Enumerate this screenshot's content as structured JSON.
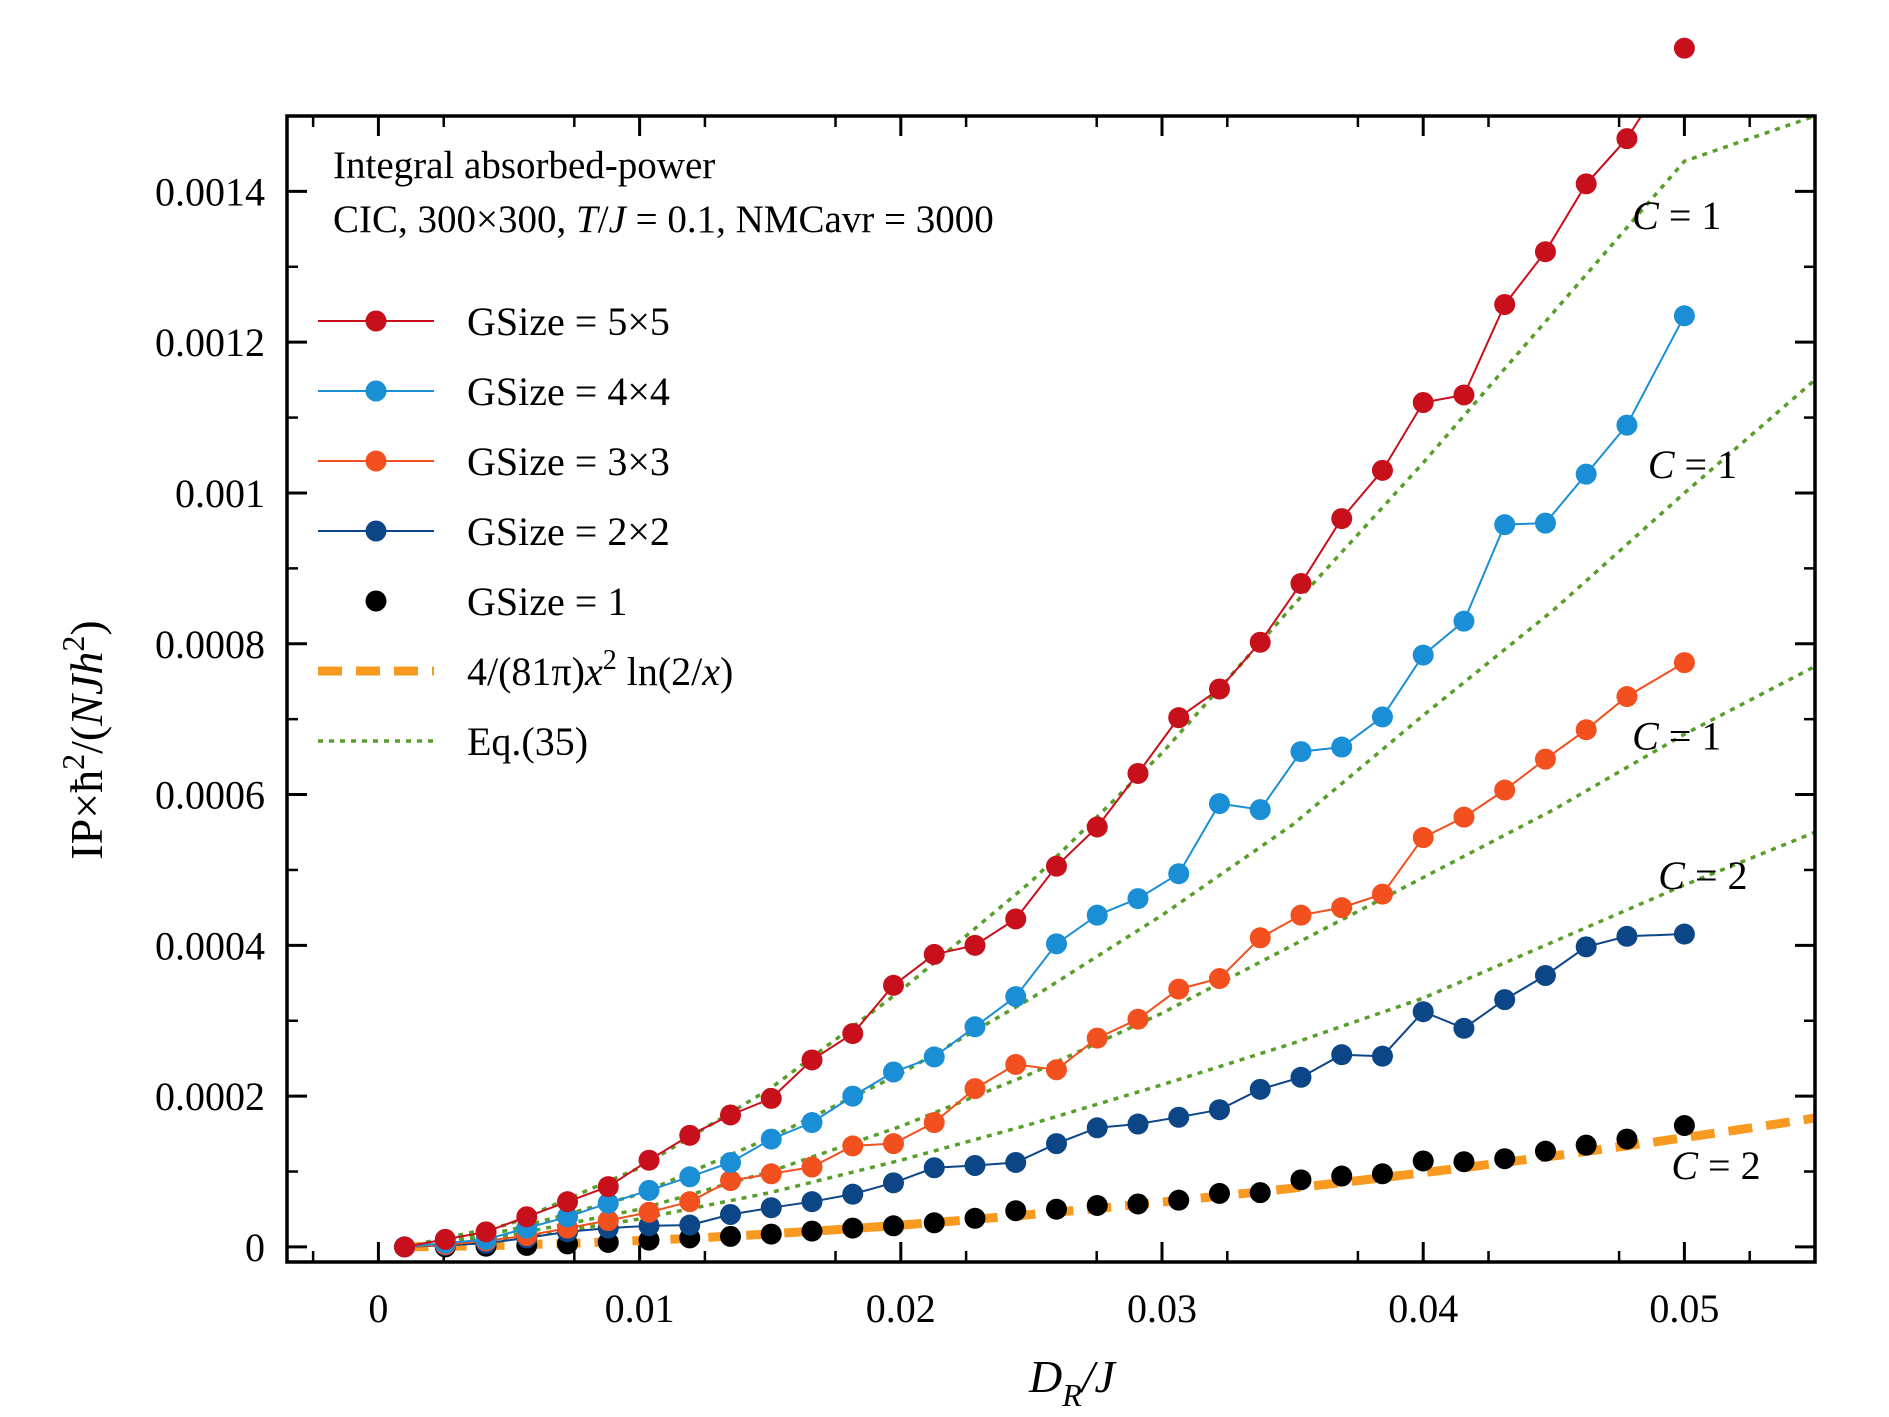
{
  "chart_data": {
    "type": "line",
    "title": "",
    "annotation_lines": [
      "Integral absorbed-power",
      "CIC, 300×300, T/J = 0.1, NMCavr = 3000"
    ],
    "annotation_parts": {
      "line2_prefix": "CIC, 300×300, ",
      "line2_T": "T",
      "line2_slash": "/",
      "line2_J": "J",
      "line2_suffix": " = 0.1, NMCavr = 3000"
    },
    "xlabel": "D_R/J",
    "xlabel_parts": {
      "main": "D",
      "sub": "R",
      "rest": "/J"
    },
    "ylabel": "IP×ħ²/(NJh²)",
    "ylabel_parts": {
      "a": "IP×ħ",
      "sup1": "2",
      "b": "/(",
      "c": "NJh",
      "sup2": "2",
      "d": ")"
    },
    "xlim": [
      -0.0035,
      0.055
    ],
    "ylim": [
      -2e-05,
      0.0015
    ],
    "xticks": [
      0,
      0.01,
      0.02,
      0.03,
      0.04,
      0.05
    ],
    "xtick_labels": [
      "0",
      "0.01",
      "0.02",
      "0.03",
      "0.04",
      "0.05"
    ],
    "yticks": [
      0,
      0.0002,
      0.0004,
      0.0006,
      0.0008,
      0.001,
      0.0012,
      0.0014
    ],
    "ytick_labels": [
      "0",
      "0.0002",
      "0.0004",
      "0.0006",
      "0.0008",
      "0.001",
      "0.0012",
      "0.0014"
    ],
    "x": [
      0.001,
      0.00256,
      0.00412,
      0.00568,
      0.00724,
      0.0088,
      0.01036,
      0.01192,
      0.01348,
      0.01504,
      0.0166,
      0.01816,
      0.01972,
      0.02128,
      0.02284,
      0.0244,
      0.02596,
      0.02752,
      0.02908,
      0.03064,
      0.0322,
      0.03376,
      0.03532,
      0.03688,
      0.03844,
      0.04,
      0.04156,
      0.04312,
      0.04468,
      0.04624,
      0.0478,
      0.05
    ],
    "series": [
      {
        "name": "GSize = 5×5",
        "color": "#c8101c",
        "style": "line-marker",
        "values": [
          0.0,
          1e-05,
          2e-05,
          4e-05,
          6e-05,
          8e-05,
          0.000115,
          0.000148,
          0.000175,
          0.000197,
          0.000248,
          0.000283,
          0.000347,
          0.000388,
          0.0004,
          0.000435,
          0.000505,
          0.000557,
          0.000628,
          0.000702,
          0.00074,
          0.000802,
          0.00088,
          0.000966,
          0.00103,
          0.00112,
          0.00113,
          0.00125,
          0.00132,
          0.00141,
          0.00147,
          0.00159
        ]
      },
      {
        "name": "GSize = 4×4",
        "color": "#1a8fd6",
        "style": "line-marker",
        "values": [
          0.0,
          5e-06,
          1e-05,
          2.5e-05,
          4e-05,
          5.8e-05,
          7.5e-05,
          9.3e-05,
          0.000112,
          0.000143,
          0.000165,
          0.0002,
          0.000232,
          0.000252,
          0.000292,
          0.000332,
          0.000402,
          0.00044,
          0.000462,
          0.000495,
          0.000588,
          0.00058,
          0.000657,
          0.000663,
          0.000703,
          0.000785,
          0.00083,
          0.000958,
          0.00096,
          0.001025,
          0.00109,
          0.001235
        ]
      },
      {
        "name": "GSize = 3×3",
        "color": "#f2501e",
        "style": "line-marker",
        "values": [
          0.0,
          3e-06,
          8e-06,
          1.5e-05,
          2.5e-05,
          3.5e-05,
          4.6e-05,
          6e-05,
          8.8e-05,
          9.7e-05,
          0.000106,
          0.000134,
          0.000137,
          0.000165,
          0.00021,
          0.000242,
          0.000235,
          0.000277,
          0.000302,
          0.000342,
          0.000356,
          0.00041,
          0.00044,
          0.00045,
          0.000468,
          0.000543,
          0.00057,
          0.000606,
          0.000647,
          0.000686,
          0.00073,
          0.000775
        ]
      },
      {
        "name": "GSize = 2×2",
        "color": "#0c4687",
        "style": "line-marker",
        "values": [
          0.0,
          2e-06,
          5e-06,
          1.2e-05,
          2e-05,
          2.5e-05,
          2.8e-05,
          2.9e-05,
          4.3e-05,
          5.2e-05,
          6e-05,
          7e-05,
          8.5e-05,
          0.000105,
          0.000108,
          0.000112,
          0.000137,
          0.000158,
          0.000163,
          0.000172,
          0.000182,
          0.000209,
          0.000225,
          0.000255,
          0.000253,
          0.000312,
          0.00029,
          0.000328,
          0.00036,
          0.000398,
          0.000412,
          0.000415
        ]
      },
      {
        "name": "GSize = 1",
        "color": "#000000",
        "style": "marker",
        "values": [
          0.0,
          0.0,
          1e-06,
          2e-06,
          4e-06,
          6e-06,
          9e-06,
          1.2e-05,
          1.4e-05,
          1.7e-05,
          2.1e-05,
          2.5e-05,
          2.8e-05,
          3.2e-05,
          3.8e-05,
          4.8e-05,
          5e-05,
          5.5e-05,
          5.7e-05,
          6.2e-05,
          7.1e-05,
          7.2e-05,
          8.9e-05,
          9.4e-05,
          9.7e-05,
          0.000114,
          0.000113,
          0.000117,
          0.000127,
          0.000135,
          0.000143,
          0.000161
        ]
      },
      {
        "name": "4/(81π)x² ln(2/x)",
        "color": "#f79a1f",
        "style": "dashed",
        "formula": "4/(81*pi)*x^2*ln(2/x)"
      },
      {
        "name": "Eq.(35)",
        "color": "#5a9e2a",
        "style": "dotted",
        "curves": [
          {
            "x": [
              0.001,
              0.005,
              0.01,
              0.015,
              0.02,
              0.025,
              0.03,
              0.035,
              0.04,
              0.045,
              0.05,
              0.055
            ],
            "values": [
              0.0,
              3e-05,
              0.000105,
              0.00021,
              0.00034,
              0.000485,
              0.000655,
              0.00085,
              0.00104,
              0.00124,
              0.00144,
              0.0015
            ]
          },
          {
            "x": [
              0.001,
              0.005,
              0.01,
              0.015,
              0.02,
              0.025,
              0.03,
              0.035,
              0.04,
              0.045,
              0.05,
              0.055
            ],
            "values": [
              0.0,
              2.2e-05,
              7e-05,
              0.000145,
              0.00023,
              0.00033,
              0.00044,
              0.00056,
              0.000705,
              0.000845,
              0.001,
              0.00115
            ]
          },
          {
            "x": [
              0.001,
              0.005,
              0.01,
              0.015,
              0.02,
              0.025,
              0.03,
              0.035,
              0.04,
              0.045,
              0.05,
              0.055
            ],
            "values": [
              0.0,
              1.5e-05,
              5e-05,
              0.0001,
              0.00016,
              0.00023,
              0.00031,
              0.0004,
              0.00049,
              0.00058,
              0.00068,
              0.00077
            ]
          },
          {
            "x": [
              0.001,
              0.005,
              0.01,
              0.015,
              0.02,
              0.025,
              0.03,
              0.035,
              0.04,
              0.045,
              0.05,
              0.055
            ],
            "values": [
              0.0,
              1e-05,
              3.7e-05,
              7.2e-05,
              0.000115,
              0.000163,
              0.000215,
              0.00027,
              0.00033,
              0.000405,
              0.00048,
              0.00055
            ]
          }
        ]
      }
    ],
    "curve_labels": [
      {
        "label": "C = 1",
        "var": "C",
        "text": " = 1",
        "x": 0.048,
        "y": 0.00135
      },
      {
        "label": "C = 1",
        "var": "C",
        "text": " = 1",
        "x": 0.0486,
        "y": 0.00102
      },
      {
        "label": "C = 1",
        "var": "C",
        "text": " = 1",
        "x": 0.048,
        "y": 0.00066
      },
      {
        "label": "C = 2",
        "var": "C",
        "text": " = 2",
        "x": 0.049,
        "y": 0.000475
      },
      {
        "label": "C = 2",
        "var": "C",
        "text": " = 2",
        "x": 0.0495,
        "y": 9e-05
      }
    ],
    "legend": {
      "placement": "upper-left",
      "entries": [
        {
          "label": "GSize = 5×5",
          "color": "#c8101c",
          "style": "line-marker"
        },
        {
          "label": "GSize = 4×4",
          "color": "#1a8fd6",
          "style": "line-marker"
        },
        {
          "label": "GSize = 3×3",
          "color": "#f2501e",
          "style": "line-marker"
        },
        {
          "label": "GSize = 2×2",
          "color": "#0c4687",
          "style": "line-marker"
        },
        {
          "label": "GSize = 1",
          "color": "#000000",
          "style": "marker"
        },
        {
          "label": "4/(81π)x² ln(2/x)",
          "color": "#f79a1f",
          "style": "dashed",
          "parts": {
            "a": "4/(81π)",
            "x1": "x",
            "sup": "2",
            "b": " ln(2/",
            "x2": "x",
            "c": ")"
          }
        },
        {
          "label": "Eq.(35)",
          "color": "#5a9e2a",
          "style": "dotted"
        }
      ]
    },
    "grid": false
  }
}
